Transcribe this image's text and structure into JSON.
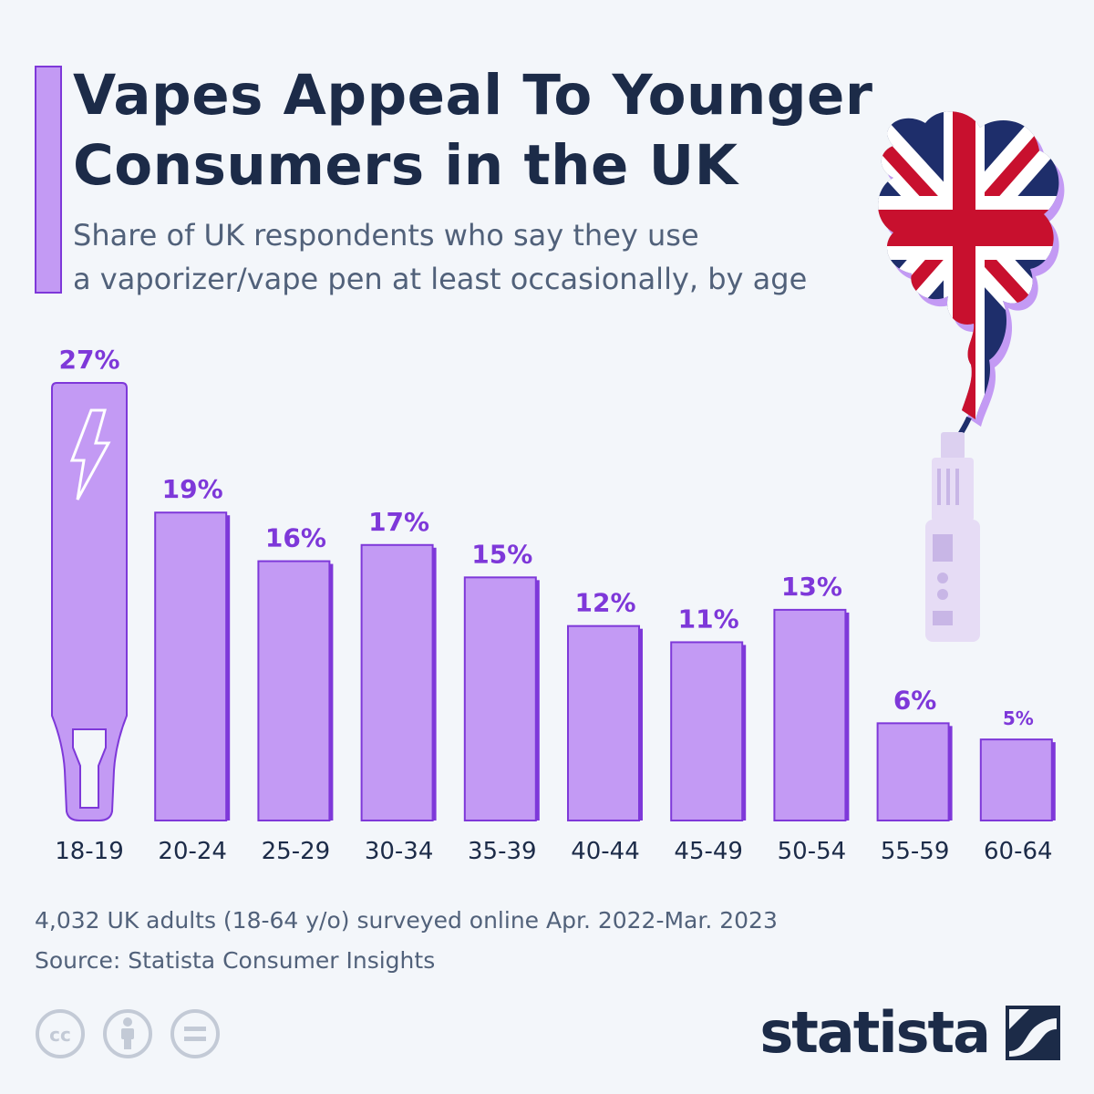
{
  "header": {
    "title_line1": "Vapes Appeal To Younger",
    "title_line2": "Consumers in the UK",
    "subtitle_line1": "Share of UK respondents who say they use",
    "subtitle_line2": "a vaporizer/vape pen at least occasionally, by age"
  },
  "chart_data": {
    "type": "bar",
    "title": "Vapes Appeal To Younger Consumers in the UK",
    "subtitle": "Share of UK respondents who say they use a vaporizer/vape pen at least occasionally, by age",
    "categories": [
      "18-19",
      "20-24",
      "25-29",
      "30-34",
      "35-39",
      "40-44",
      "45-49",
      "50-54",
      "55-59",
      "60-64"
    ],
    "values": [
      27,
      19,
      16,
      17,
      15,
      12,
      11,
      13,
      6,
      5
    ],
    "value_labels": [
      "27%",
      "19%",
      "16%",
      "17%",
      "15%",
      "12%",
      "11%",
      "13%",
      "6%",
      "5%"
    ],
    "unit": "%",
    "xlabel": "",
    "ylabel": "",
    "grid": false,
    "colors": {
      "bar_fill": "#c39af4",
      "bar_stroke": "#7e38d9",
      "label": "#7e38d9",
      "tick": "#1c2b48"
    }
  },
  "footer": {
    "note": "4,032 UK adults (18-64 y/o) surveyed online Apr. 2022-Mar. 2023",
    "source": "Source: Statista Consumer Insights",
    "logo_text": "statista",
    "license_icons": [
      "cc-icon",
      "attribution-icon",
      "no-derivatives-icon"
    ]
  },
  "illustration": {
    "icons": [
      "union-jack-smoke-cloud-icon",
      "vape-device-icon"
    ]
  }
}
